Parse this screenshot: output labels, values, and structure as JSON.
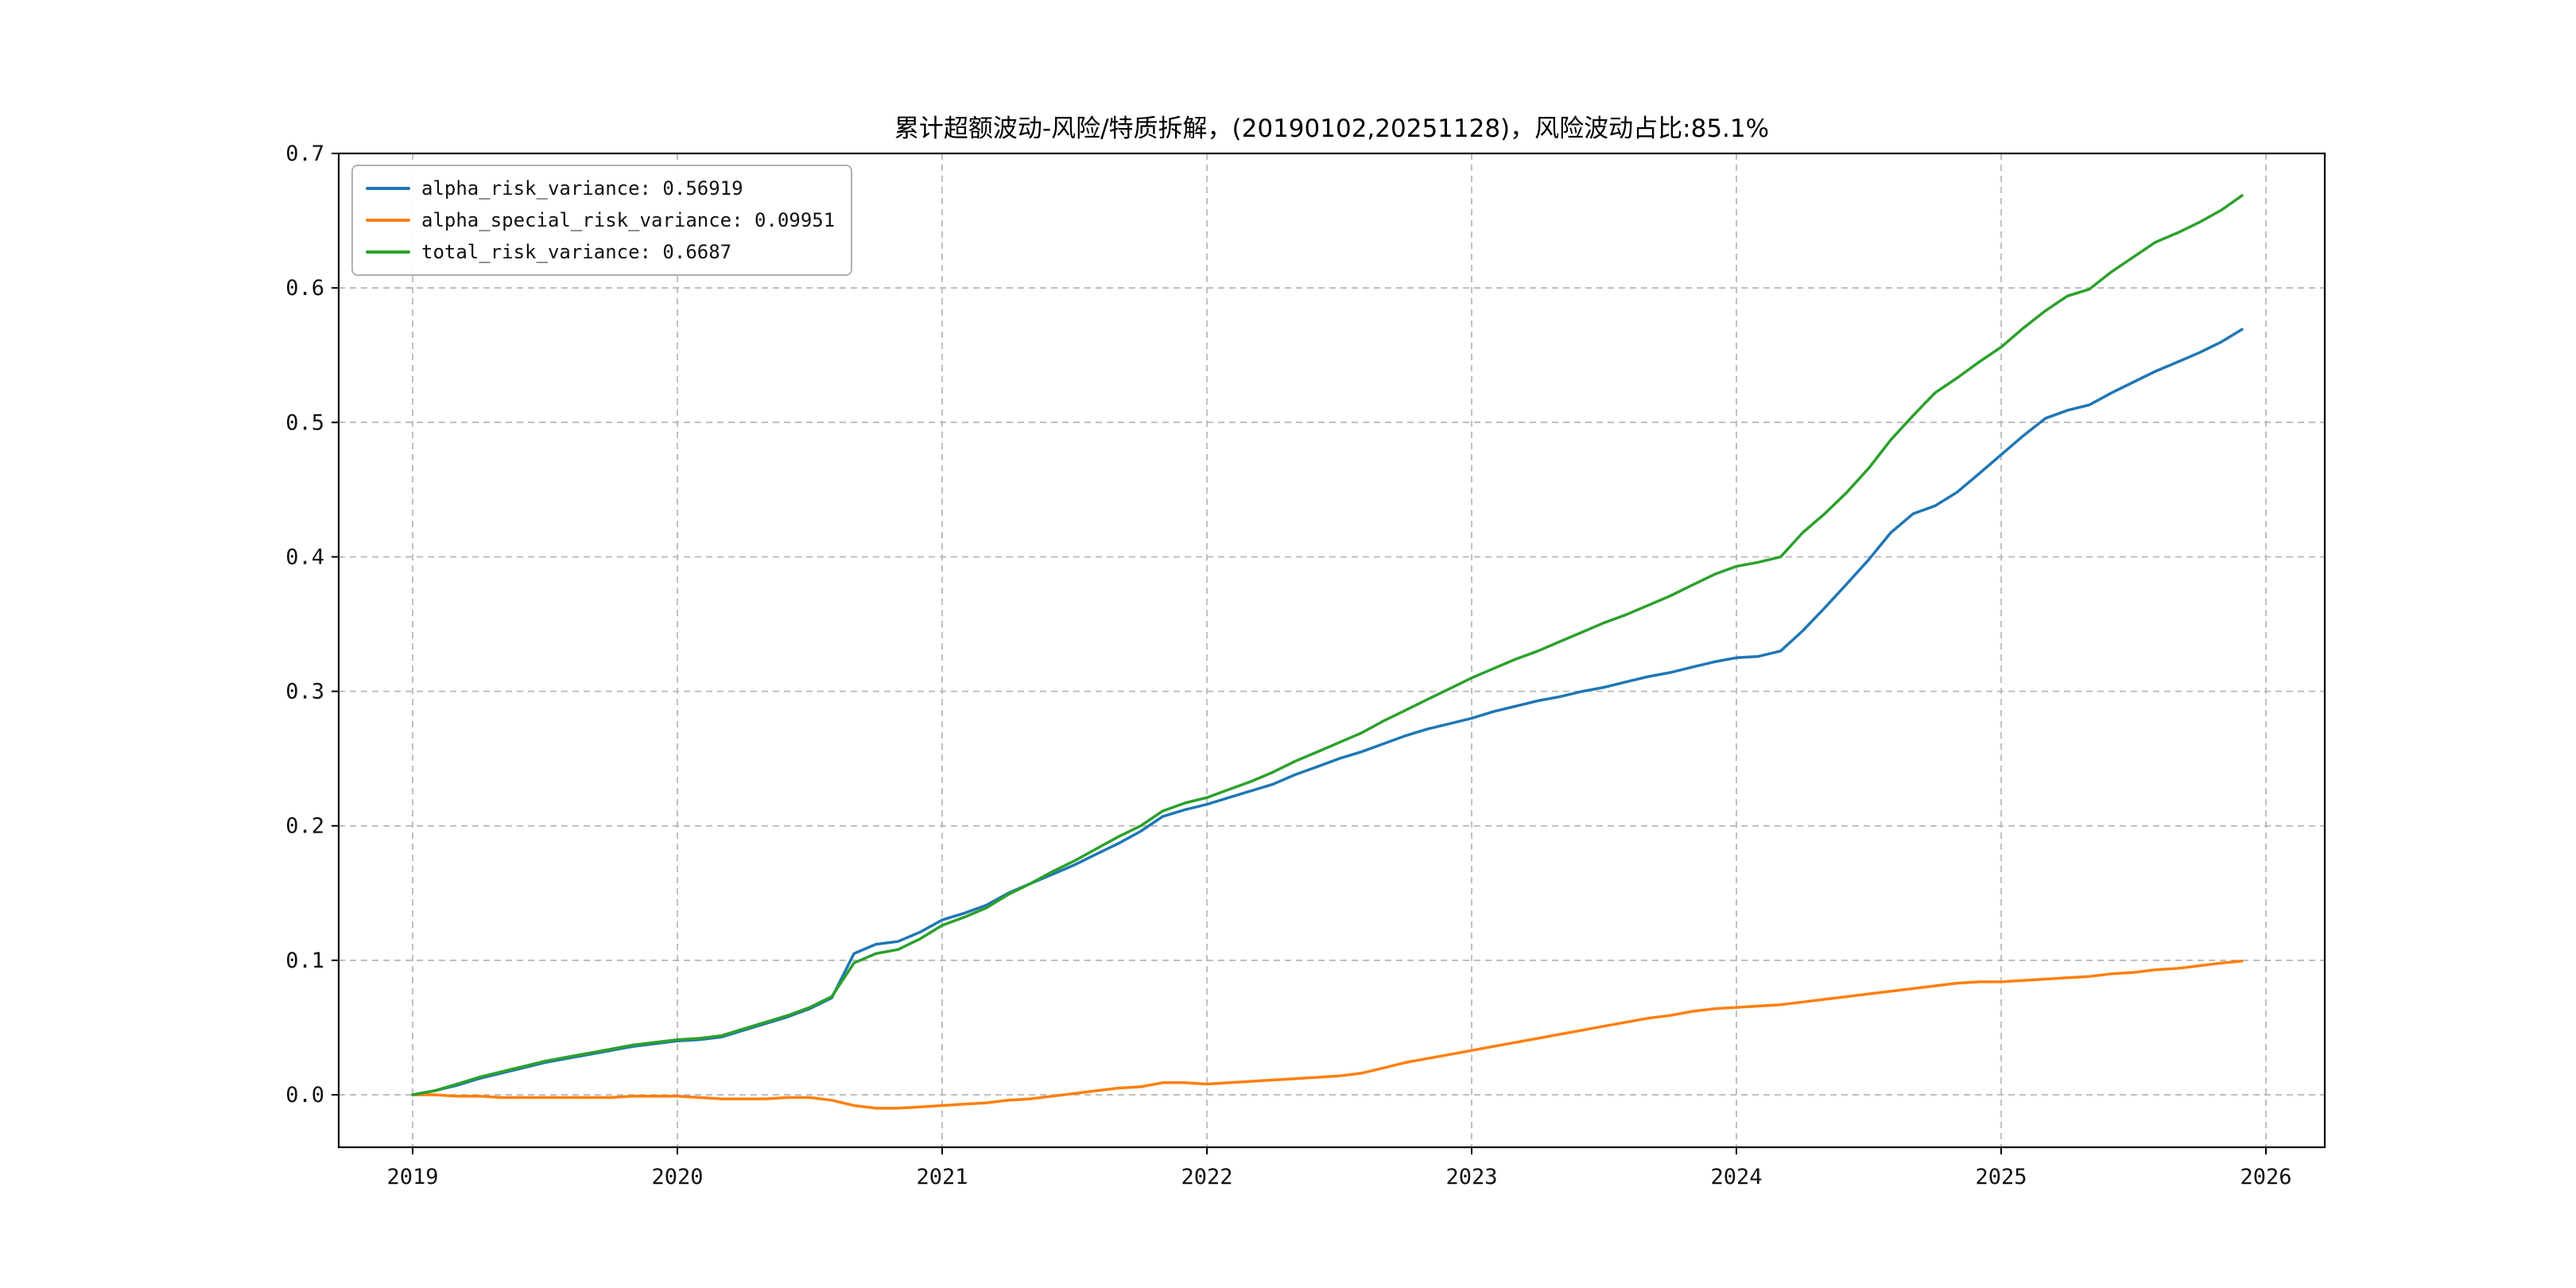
{
  "chart_data": {
    "type": "line",
    "title": "累计超额波动-风险/特质拆解，(20190102,20251128)，风险波动占比:85.1%",
    "xlabel": "",
    "ylabel": "",
    "date_range_start": "20190102",
    "date_range_end": "20251128",
    "risk_ratio_pct": 85.1,
    "grid": true,
    "grid_style": "dashed",
    "legend_position": "upper-left",
    "x_ticks": [
      2019,
      2020,
      2021,
      2022,
      2023,
      2024,
      2025,
      2026
    ],
    "x_tick_labels": [
      "2019",
      "2020",
      "2021",
      "2022",
      "2023",
      "2024",
      "2025",
      "2026"
    ],
    "y_ticks": [
      0.0,
      0.1,
      0.2,
      0.3,
      0.4,
      0.5,
      0.6,
      0.7
    ],
    "y_tick_labels": [
      "0.0",
      "0.1",
      "0.2",
      "0.3",
      "0.4",
      "0.5",
      "0.6",
      "0.7"
    ],
    "xlim": [
      2018.72,
      2026.22
    ],
    "ylim": [
      -0.039,
      0.7
    ],
    "x": [
      2019.0,
      2019.083,
      2019.167,
      2019.25,
      2019.333,
      2019.417,
      2019.5,
      2019.583,
      2019.667,
      2019.75,
      2019.833,
      2019.917,
      2020.0,
      2020.083,
      2020.167,
      2020.25,
      2020.333,
      2020.417,
      2020.5,
      2020.583,
      2020.667,
      2020.75,
      2020.833,
      2020.917,
      2021.0,
      2021.083,
      2021.167,
      2021.25,
      2021.333,
      2021.417,
      2021.5,
      2021.583,
      2021.667,
      2021.75,
      2021.833,
      2021.917,
      2022.0,
      2022.083,
      2022.167,
      2022.25,
      2022.333,
      2022.417,
      2022.5,
      2022.583,
      2022.667,
      2022.75,
      2022.833,
      2022.917,
      2023.0,
      2023.083,
      2023.167,
      2023.25,
      2023.333,
      2023.417,
      2023.5,
      2023.583,
      2023.667,
      2023.75,
      2023.833,
      2023.917,
      2024.0,
      2024.083,
      2024.167,
      2024.25,
      2024.333,
      2024.417,
      2024.5,
      2024.583,
      2024.667,
      2024.75,
      2024.833,
      2024.917,
      2025.0,
      2025.083,
      2025.167,
      2025.25,
      2025.333,
      2025.417,
      2025.5,
      2025.583,
      2025.667,
      2025.75,
      2025.833,
      2025.91
    ],
    "series": [
      {
        "name": "alpha_risk_variance",
        "label": "alpha_risk_variance: 0.56919",
        "color": "#1f77b4",
        "final_value": 0.56919,
        "values": [
          0.0,
          0.003,
          0.007,
          0.012,
          0.016,
          0.02,
          0.024,
          0.027,
          0.03,
          0.033,
          0.036,
          0.038,
          0.04,
          0.041,
          0.043,
          0.048,
          0.053,
          0.058,
          0.064,
          0.072,
          0.105,
          0.112,
          0.114,
          0.121,
          0.13,
          0.135,
          0.141,
          0.15,
          0.157,
          0.164,
          0.171,
          0.179,
          0.187,
          0.196,
          0.207,
          0.212,
          0.216,
          0.221,
          0.226,
          0.231,
          0.238,
          0.244,
          0.25,
          0.255,
          0.261,
          0.267,
          0.272,
          0.276,
          0.28,
          0.285,
          0.289,
          0.293,
          0.296,
          0.3,
          0.303,
          0.307,
          0.311,
          0.314,
          0.318,
          0.322,
          0.325,
          0.326,
          0.33,
          0.345,
          0.362,
          0.38,
          0.398,
          0.418,
          0.432,
          0.438,
          0.448,
          0.462,
          0.476,
          0.49,
          0.503,
          0.509,
          0.513,
          0.522,
          0.53,
          0.538,
          0.545,
          0.552,
          0.56,
          0.56919
        ]
      },
      {
        "name": "alpha_special_risk_variance",
        "label": "alpha_special_risk_variance: 0.09951",
        "color": "#ff7f0e",
        "final_value": 0.09951,
        "values": [
          0.0,
          0.0,
          -0.001,
          -0.001,
          -0.002,
          -0.002,
          -0.002,
          -0.002,
          -0.002,
          -0.002,
          -0.001,
          -0.001,
          -0.001,
          -0.002,
          -0.003,
          -0.003,
          -0.003,
          -0.002,
          -0.002,
          -0.004,
          -0.008,
          -0.01,
          -0.01,
          -0.009,
          -0.008,
          -0.007,
          -0.006,
          -0.004,
          -0.003,
          -0.001,
          0.001,
          0.003,
          0.005,
          0.006,
          0.009,
          0.009,
          0.008,
          0.009,
          0.01,
          0.011,
          0.012,
          0.013,
          0.014,
          0.016,
          0.02,
          0.024,
          0.027,
          0.03,
          0.033,
          0.036,
          0.039,
          0.042,
          0.045,
          0.048,
          0.051,
          0.054,
          0.057,
          0.059,
          0.062,
          0.064,
          0.065,
          0.066,
          0.067,
          0.069,
          0.071,
          0.073,
          0.075,
          0.077,
          0.079,
          0.081,
          0.083,
          0.084,
          0.084,
          0.085,
          0.086,
          0.087,
          0.088,
          0.09,
          0.091,
          0.093,
          0.094,
          0.096,
          0.098,
          0.09951
        ]
      },
      {
        "name": "total_risk_variance",
        "label": "total_risk_variance: 0.6687",
        "color": "#2ca02c",
        "final_value": 0.6687,
        "values": [
          0.0,
          0.003,
          0.008,
          0.013,
          0.017,
          0.021,
          0.025,
          0.028,
          0.031,
          0.034,
          0.037,
          0.039,
          0.041,
          0.042,
          0.044,
          0.049,
          0.054,
          0.059,
          0.065,
          0.073,
          0.098,
          0.105,
          0.108,
          0.116,
          0.126,
          0.132,
          0.139,
          0.149,
          0.157,
          0.166,
          0.174,
          0.183,
          0.192,
          0.2,
          0.211,
          0.217,
          0.221,
          0.227,
          0.233,
          0.24,
          0.248,
          0.255,
          0.262,
          0.269,
          0.278,
          0.286,
          0.294,
          0.302,
          0.31,
          0.317,
          0.324,
          0.33,
          0.337,
          0.344,
          0.351,
          0.357,
          0.364,
          0.371,
          0.379,
          0.387,
          0.393,
          0.396,
          0.4,
          0.418,
          0.432,
          0.448,
          0.466,
          0.487,
          0.505,
          0.522,
          0.533,
          0.545,
          0.556,
          0.57,
          0.583,
          0.594,
          0.599,
          0.612,
          0.623,
          0.634,
          0.641,
          0.649,
          0.658,
          0.6687
        ]
      }
    ]
  }
}
